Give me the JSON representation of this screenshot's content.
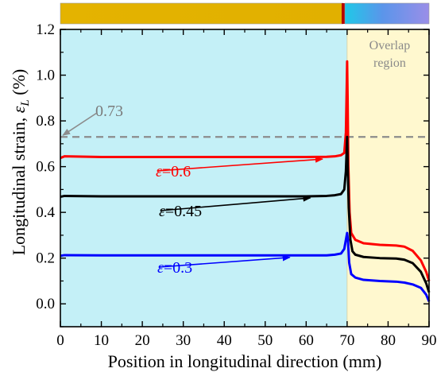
{
  "chart_data": {
    "type": "line",
    "xlabel": "Position in longitudinal direction (mm)",
    "ylabel_main": "Longitudinal strain, ",
    "ylabel_symbol": "ε",
    "ylabel_sub": "L",
    "ylabel_unit": " (%)",
    "xlim": [
      0,
      90
    ],
    "ylim": [
      -0.1,
      1.2
    ],
    "x_ticks": [
      0,
      10,
      20,
      30,
      40,
      50,
      60,
      70,
      80,
      90
    ],
    "y_ticks": [
      0.0,
      0.2,
      0.4,
      0.6,
      0.8,
      1.0,
      1.2
    ],
    "grid": false,
    "regions": [
      {
        "name": "",
        "x_range": [
          0,
          70
        ],
        "color": "#c4f0f7"
      },
      {
        "name_line1": "Overlap",
        "name_line2": "region",
        "x_range": [
          70,
          90
        ],
        "color": "#fff8cf"
      }
    ],
    "reference_line": {
      "y": 0.73,
      "label": "0.73",
      "color": "#8c8c8c"
    },
    "series": [
      {
        "label_symbol": "ε",
        "label_value": "=0.6",
        "color": "#ff0000",
        "points": [
          [
            0,
            0.638
          ],
          [
            1,
            0.645
          ],
          [
            10,
            0.642
          ],
          [
            30,
            0.642
          ],
          [
            50,
            0.642
          ],
          [
            60,
            0.642
          ],
          [
            65,
            0.643
          ],
          [
            67,
            0.645
          ],
          [
            68.5,
            0.65
          ],
          [
            69.3,
            0.66
          ],
          [
            69.7,
            0.75
          ],
          [
            69.9,
            0.95
          ],
          [
            70.0,
            1.06
          ],
          [
            70.12,
            0.9
          ],
          [
            70.3,
            0.6
          ],
          [
            70.6,
            0.4
          ],
          [
            71.0,
            0.31
          ],
          [
            72,
            0.28
          ],
          [
            74,
            0.265
          ],
          [
            78,
            0.258
          ],
          [
            82,
            0.255
          ],
          [
            84,
            0.25
          ],
          [
            86,
            0.232
          ],
          [
            88,
            0.19
          ],
          [
            89.3,
            0.14
          ],
          [
            90,
            0.1
          ]
        ],
        "label_anchor": [
          64,
          0.64
        ]
      },
      {
        "label_symbol": "ε",
        "label_value": "=0.45",
        "color": "#000000",
        "points": [
          [
            0,
            0.468
          ],
          [
            1,
            0.472
          ],
          [
            10,
            0.47
          ],
          [
            30,
            0.47
          ],
          [
            50,
            0.47
          ],
          [
            60,
            0.47
          ],
          [
            65,
            0.472
          ],
          [
            67,
            0.475
          ],
          [
            68.5,
            0.48
          ],
          [
            69.3,
            0.5
          ],
          [
            69.7,
            0.58
          ],
          [
            70.0,
            0.73
          ],
          [
            70.15,
            0.6
          ],
          [
            70.4,
            0.42
          ],
          [
            70.8,
            0.28
          ],
          [
            71.3,
            0.23
          ],
          [
            72,
            0.215
          ],
          [
            74,
            0.205
          ],
          [
            78,
            0.2
          ],
          [
            82,
            0.198
          ],
          [
            84,
            0.193
          ],
          [
            86,
            0.178
          ],
          [
            88,
            0.14
          ],
          [
            89.3,
            0.09
          ],
          [
            90,
            0.05
          ]
        ],
        "label_anchor": [
          61,
          0.47
        ]
      },
      {
        "label_symbol": "ε",
        "label_value": "=0.3",
        "color": "#0000ff",
        "points": [
          [
            0,
            0.21
          ],
          [
            1,
            0.213
          ],
          [
            10,
            0.212
          ],
          [
            30,
            0.212
          ],
          [
            50,
            0.212
          ],
          [
            60,
            0.212
          ],
          [
            65,
            0.212
          ],
          [
            67,
            0.215
          ],
          [
            68.5,
            0.22
          ],
          [
            69.3,
            0.24
          ],
          [
            69.7,
            0.28
          ],
          [
            70.0,
            0.31
          ],
          [
            70.2,
            0.28
          ],
          [
            70.5,
            0.18
          ],
          [
            71,
            0.13
          ],
          [
            72,
            0.115
          ],
          [
            74,
            0.105
          ],
          [
            78,
            0.1
          ],
          [
            82,
            0.097
          ],
          [
            84,
            0.093
          ],
          [
            86,
            0.085
          ],
          [
            88,
            0.07
          ],
          [
            89.3,
            0.04
          ],
          [
            90,
            0.01
          ]
        ],
        "label_anchor": [
          56,
          0.21
        ]
      }
    ]
  }
}
